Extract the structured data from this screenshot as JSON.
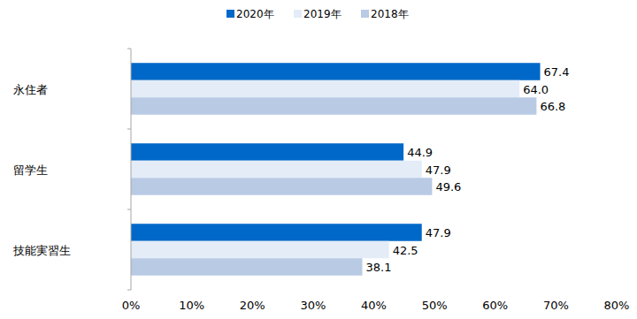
{
  "chart_data": {
    "type": "bar",
    "orientation": "horizontal",
    "categories": [
      "永住者",
      "留学生",
      "技能実習生"
    ],
    "series": [
      {
        "name": "2020年",
        "color": "#0068c8",
        "values": [
          67.4,
          44.9,
          47.9
        ],
        "value_labels": [
          "67.4",
          "44.9",
          "47.9"
        ]
      },
      {
        "name": "2019年",
        "color": "#e4ecf8",
        "values": [
          64.0,
          47.9,
          42.5
        ],
        "value_labels": [
          "64.0",
          "47.9",
          "42.5"
        ]
      },
      {
        "name": "2018年",
        "color": "#b8cae4",
        "values": [
          66.8,
          49.6,
          38.1
        ],
        "value_labels": [
          "66.8",
          "49.6",
          "38.1"
        ]
      }
    ],
    "xlim": [
      0,
      80
    ],
    "xticks": [
      {
        "value": 0,
        "label": "0%"
      },
      {
        "value": 10,
        "label": "10%"
      },
      {
        "value": 20,
        "label": "20%"
      },
      {
        "value": 30,
        "label": "30%"
      },
      {
        "value": 40,
        "label": "40%"
      },
      {
        "value": 50,
        "label": "50%"
      },
      {
        "value": 60,
        "label": "60%"
      },
      {
        "value": 70,
        "label": "70%"
      },
      {
        "value": 80,
        "label": "80%"
      }
    ],
    "grid": false,
    "legend": "top",
    "data_labels": true
  }
}
